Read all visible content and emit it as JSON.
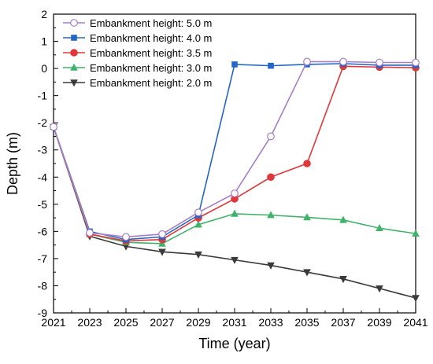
{
  "chart_data": {
    "type": "line",
    "xlabel": "Time (year)",
    "ylabel": "Depth (m)",
    "xlim": [
      2021,
      2041
    ],
    "ylim": [
      -9,
      2
    ],
    "xticks": [
      2021,
      2023,
      2025,
      2027,
      2029,
      2031,
      2033,
      2035,
      2037,
      2039,
      2041
    ],
    "yticks": [
      -9,
      -8,
      -7,
      -6,
      -5,
      -4,
      -3,
      -2,
      -1,
      0,
      1,
      2
    ],
    "legend_position": "top-left",
    "grid": false,
    "series": [
      {
        "name": "Embankment height: 5.0 m",
        "color": "#a57fc6",
        "marker": "circle-open",
        "x": [
          2021,
          2023,
          2025,
          2027,
          2029,
          2031,
          2033,
          2035,
          2037,
          2039,
          2041
        ],
        "y": [
          -2.15,
          -6.05,
          -6.2,
          -6.1,
          -5.3,
          -4.6,
          -2.5,
          0.25,
          0.25,
          0.22,
          0.22
        ]
      },
      {
        "name": "Embankment height: 4.0 m",
        "color": "#2366c4",
        "marker": "square",
        "x": [
          2021,
          2023,
          2025,
          2027,
          2029,
          2031,
          2033,
          2035,
          2037,
          2039,
          2041
        ],
        "y": [
          -2.15,
          -6.0,
          -6.3,
          -6.2,
          -5.4,
          0.15,
          0.1,
          0.15,
          0.18,
          0.12,
          0.12
        ]
      },
      {
        "name": "Embankment height: 3.5 m",
        "color": "#e0383a",
        "marker": "circle",
        "x": [
          2021,
          2023,
          2025,
          2027,
          2029,
          2031,
          2033,
          2035,
          2037,
          2039,
          2041
        ],
        "y": [
          -2.15,
          -6.1,
          -6.35,
          -6.3,
          -5.5,
          -4.8,
          -4.0,
          -3.5,
          0.08,
          0.05,
          0.03
        ]
      },
      {
        "name": "Embankment height: 3.0 m",
        "color": "#3fb36b",
        "marker": "triangle-up",
        "x": [
          2021,
          2023,
          2025,
          2027,
          2029,
          2031,
          2033,
          2035,
          2037,
          2039,
          2041
        ],
        "y": [
          -2.15,
          -6.1,
          -6.4,
          -6.45,
          -5.75,
          -5.35,
          -5.4,
          -5.48,
          -5.58,
          -5.88,
          -6.08
        ]
      },
      {
        "name": "Embankment height: 2.0 m",
        "color": "#3a3a3a",
        "marker": "triangle-down",
        "x": [
          2021,
          2023,
          2025,
          2027,
          2029,
          2031,
          2033,
          2035,
          2037,
          2039,
          2041
        ],
        "y": [
          -2.15,
          -6.18,
          -6.55,
          -6.75,
          -6.85,
          -7.05,
          -7.25,
          -7.5,
          -7.75,
          -8.1,
          -8.45
        ]
      }
    ]
  }
}
